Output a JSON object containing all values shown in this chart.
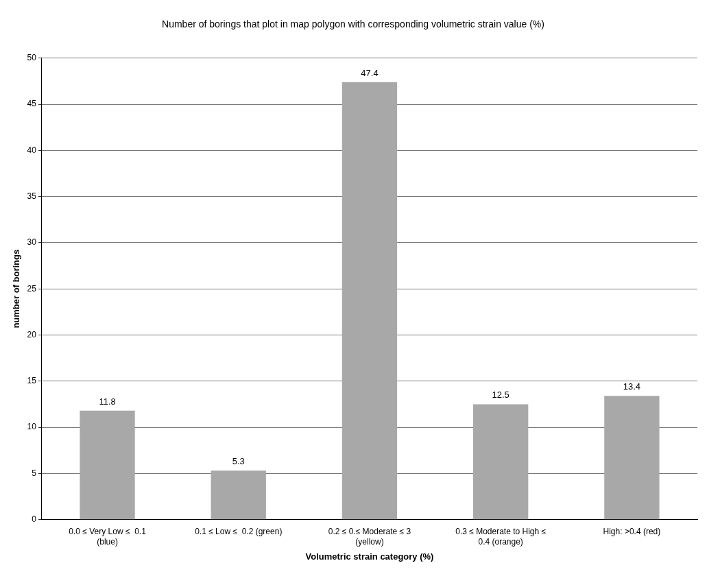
{
  "chart_data": {
    "type": "bar",
    "title": "Number of borings that plot in map polygon with corresponding volumetric strain value (%)",
    "xlabel": "Volumetric strain category (%)",
    "ylabel": "number of borings",
    "categories": [
      "0.0 ≤ Very Low ≤  0.1 (blue)",
      "0.1 ≤ Low ≤  0.2 (green)",
      "0.2 ≤ 0.≤ Moderate ≤ 3 (yellow)",
      "0.3 ≤ Moderate to High ≤ 0.4 (orange)",
      "High: >0.4 (red)"
    ],
    "values": [
      11.8,
      5.3,
      47.4,
      12.5,
      13.4
    ],
    "color": "#a8a8a8",
    "ylim": [
      0,
      50
    ],
    "yticks": [
      0,
      5,
      10,
      15,
      20,
      25,
      30,
      35,
      40,
      45,
      50
    ],
    "grid": "y",
    "data_labels": true
  }
}
